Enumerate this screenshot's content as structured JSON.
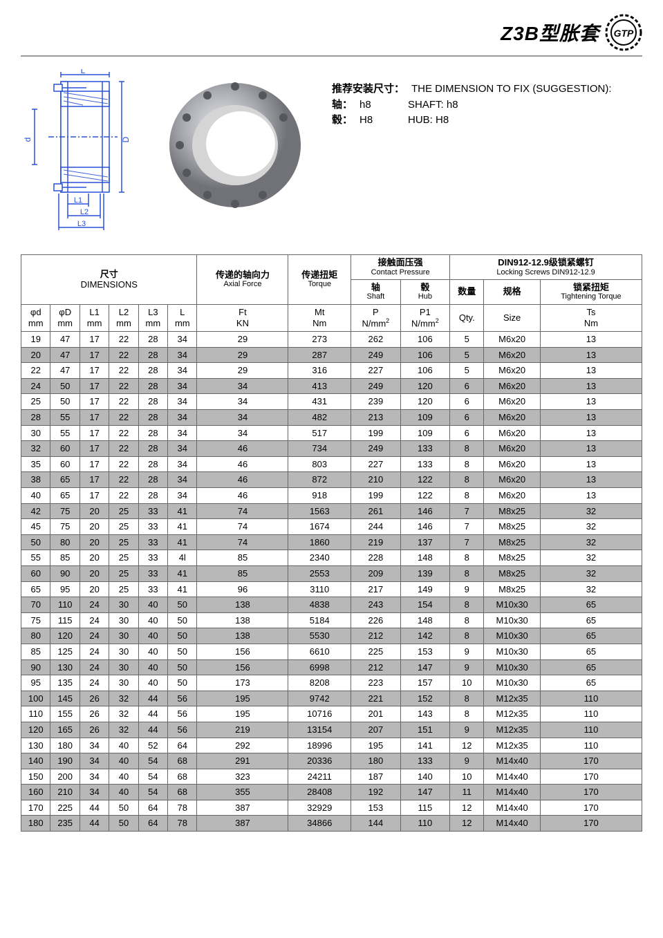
{
  "title": "Z3B型胀套",
  "logo_text": "GTP",
  "info": {
    "rec_cn": "推荐安装尺寸：",
    "rec_en": "THE DIMENSION TO FIX (SUGGESTION):",
    "shaft_cn": "轴：",
    "shaft_val": "h8",
    "shaft_en": "SHAFT: h8",
    "hub_cn": "毂：",
    "hub_val": "H8",
    "hub_en": "HUB: H8"
  },
  "headers": {
    "dim_cn": "尺寸",
    "dim_en": "DIMENSIONS",
    "axial_cn": "传递的轴向力",
    "axial_en": "Axial Force",
    "torque_cn": "传递扭矩",
    "torque_en": "Torque",
    "contact_cn": "接触面压强",
    "contact_en": "Contact Pressure",
    "shaft_cn": "轴",
    "shaft_en": "Shaft",
    "hub_cn": "毂",
    "hub_en": "Hub",
    "screw_cn": "DIN912-12.9级锁紧螺钉",
    "screw_en": "Locking Screws DIN912-12.9",
    "qty_cn": "数量",
    "size_cn": "规格",
    "tight_cn": "锁紧扭矩",
    "tight_en": "Tightening Torque"
  },
  "units": {
    "phi_d": "φd mm",
    "phi_D": "φD mm",
    "L1": "L1 mm",
    "L2": "L2 mm",
    "L3": "L3 mm",
    "L": "L mm",
    "Ft": "Ft KN",
    "Mt": "Mt Nm",
    "P": "P N/mm²",
    "P1": "P1 N/mm²",
    "Qty": "Qty.",
    "Size": "Size",
    "Ts": "Ts Nm"
  },
  "rows": [
    [
      "19",
      "47",
      "17",
      "22",
      "28",
      "34",
      "29",
      "273",
      "262",
      "106",
      "5",
      "M6x20",
      "13"
    ],
    [
      "20",
      "47",
      "17",
      "22",
      "28",
      "34",
      "29",
      "287",
      "249",
      "106",
      "5",
      "M6x20",
      "13"
    ],
    [
      "22",
      "47",
      "17",
      "22",
      "28",
      "34",
      "29",
      "316",
      "227",
      "106",
      "5",
      "M6x20",
      "13"
    ],
    [
      "24",
      "50",
      "17",
      "22",
      "28",
      "34",
      "34",
      "413",
      "249",
      "120",
      "6",
      "M6x20",
      "13"
    ],
    [
      "25",
      "50",
      "17",
      "22",
      "28",
      "34",
      "34",
      "431",
      "239",
      "120",
      "6",
      "M6x20",
      "13"
    ],
    [
      "28",
      "55",
      "17",
      "22",
      "28",
      "34",
      "34",
      "482",
      "213",
      "109",
      "6",
      "M6x20",
      "13"
    ],
    [
      "30",
      "55",
      "17",
      "22",
      "28",
      "34",
      "34",
      "517",
      "199",
      "109",
      "6",
      "M6x20",
      "13"
    ],
    [
      "32",
      "60",
      "17",
      "22",
      "28",
      "34",
      "46",
      "734",
      "249",
      "133",
      "8",
      "M6x20",
      "13"
    ],
    [
      "35",
      "60",
      "17",
      "22",
      "28",
      "34",
      "46",
      "803",
      "227",
      "133",
      "8",
      "M6x20",
      "13"
    ],
    [
      "38",
      "65",
      "17",
      "22",
      "28",
      "34",
      "46",
      "872",
      "210",
      "122",
      "8",
      "M6x20",
      "13"
    ],
    [
      "40",
      "65",
      "17",
      "22",
      "28",
      "34",
      "46",
      "918",
      "199",
      "122",
      "8",
      "M6x20",
      "13"
    ],
    [
      "42",
      "75",
      "20",
      "25",
      "33",
      "41",
      "74",
      "1563",
      "261",
      "146",
      "7",
      "M8x25",
      "32"
    ],
    [
      "45",
      "75",
      "20",
      "25",
      "33",
      "41",
      "74",
      "1674",
      "244",
      "146",
      "7",
      "M8x25",
      "32"
    ],
    [
      "50",
      "80",
      "20",
      "25",
      "33",
      "41",
      "74",
      "1860",
      "219",
      "137",
      "7",
      "M8x25",
      "32"
    ],
    [
      "55",
      "85",
      "20",
      "25",
      "33",
      "4l",
      "85",
      "2340",
      "228",
      "148",
      "8",
      "M8x25",
      "32"
    ],
    [
      "60",
      "90",
      "20",
      "25",
      "33",
      "41",
      "85",
      "2553",
      "209",
      "139",
      "8",
      "M8x25",
      "32"
    ],
    [
      "65",
      "95",
      "20",
      "25",
      "33",
      "41",
      "96",
      "3110",
      "217",
      "149",
      "9",
      "M8x25",
      "32"
    ],
    [
      "70",
      "110",
      "24",
      "30",
      "40",
      "50",
      "138",
      "4838",
      "243",
      "154",
      "8",
      "M10x30",
      "65"
    ],
    [
      "75",
      "115",
      "24",
      "30",
      "40",
      "50",
      "138",
      "5184",
      "226",
      "148",
      "8",
      "M10x30",
      "65"
    ],
    [
      "80",
      "120",
      "24",
      "30",
      "40",
      "50",
      "138",
      "5530",
      "212",
      "142",
      "8",
      "M10x30",
      "65"
    ],
    [
      "85",
      "125",
      "24",
      "30",
      "40",
      "50",
      "156",
      "6610",
      "225",
      "153",
      "9",
      "M10x30",
      "65"
    ],
    [
      "90",
      "130",
      "24",
      "30",
      "40",
      "50",
      "156",
      "6998",
      "212",
      "147",
      "9",
      "M10x30",
      "65"
    ],
    [
      "95",
      "135",
      "24",
      "30",
      "40",
      "50",
      "173",
      "8208",
      "223",
      "157",
      "10",
      "M10x30",
      "65"
    ],
    [
      "100",
      "145",
      "26",
      "32",
      "44",
      "56",
      "195",
      "9742",
      "221",
      "152",
      "8",
      "M12x35",
      "110"
    ],
    [
      "110",
      "155",
      "26",
      "32",
      "44",
      "56",
      "195",
      "10716",
      "201",
      "143",
      "8",
      "M12x35",
      "110"
    ],
    [
      "120",
      "165",
      "26",
      "32",
      "44",
      "56",
      "219",
      "13154",
      "207",
      "151",
      "9",
      "M12x35",
      "110"
    ],
    [
      "130",
      "180",
      "34",
      "40",
      "52",
      "64",
      "292",
      "18996",
      "195",
      "141",
      "12",
      "M12x35",
      "110"
    ],
    [
      "140",
      "190",
      "34",
      "40",
      "54",
      "68",
      "291",
      "20336",
      "180",
      "133",
      "9",
      "M14x40",
      "170"
    ],
    [
      "150",
      "200",
      "34",
      "40",
      "54",
      "68",
      "323",
      "24211",
      "187",
      "140",
      "10",
      "M14x40",
      "170"
    ],
    [
      "160",
      "210",
      "34",
      "40",
      "54",
      "68",
      "355",
      "28408",
      "192",
      "147",
      "11",
      "M14x40",
      "170"
    ],
    [
      "170",
      "225",
      "44",
      "50",
      "64",
      "78",
      "387",
      "32929",
      "153",
      "115",
      "12",
      "M14x40",
      "170"
    ],
    [
      "180",
      "235",
      "44",
      "50",
      "64",
      "78",
      "387",
      "34866",
      "144",
      "110",
      "12",
      "M14x40",
      "170"
    ]
  ],
  "colors": {
    "diagram_blue": "#2850d8",
    "hatch_blue": "#4060e0",
    "photo_gray": "#a8aab0",
    "border": "#666666",
    "row_alt": "#b8b8b8"
  }
}
